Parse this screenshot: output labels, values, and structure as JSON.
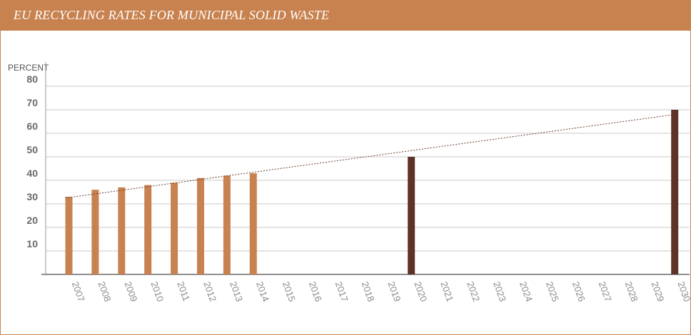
{
  "header": {
    "title": "EU RECYCLING RATES FOR MUNICIPAL SOLID WASTE"
  },
  "colors": {
    "header_bg": "#c8824f",
    "historical_bar": "#c8824f",
    "target_bar": "#5e3226",
    "grid": "#c9c9c9",
    "trend": "#6b3b2c"
  },
  "chart_data": {
    "type": "bar",
    "title": "EU RECYCLING RATES FOR MUNICIPAL SOLID WASTE",
    "ylabel": "PERCENT",
    "xlabel": "",
    "ylim": [
      0,
      80
    ],
    "yticks": [
      10,
      20,
      30,
      40,
      50,
      60,
      70,
      80
    ],
    "grid": true,
    "categories": [
      "2007",
      "2008",
      "2009",
      "2010",
      "2011",
      "2012",
      "2013",
      "2014",
      "2015",
      "2016",
      "2017",
      "2018",
      "2019",
      "2020",
      "2021",
      "2022",
      "2023",
      "2024",
      "2025",
      "2026",
      "2027",
      "2028",
      "2029",
      "2030"
    ],
    "series": [
      {
        "kind": "historical",
        "values": [
          33,
          36,
          37,
          38,
          39,
          41,
          42,
          43,
          null,
          null,
          null,
          null,
          null,
          null,
          null,
          null,
          null,
          null,
          null,
          null,
          null,
          null,
          null,
          null
        ]
      },
      {
        "kind": "target",
        "values": [
          null,
          null,
          null,
          null,
          null,
          null,
          null,
          null,
          null,
          null,
          null,
          null,
          null,
          50,
          null,
          null,
          null,
          null,
          null,
          null,
          null,
          null,
          null,
          70
        ]
      }
    ],
    "trendline": {
      "style": "dotted",
      "from": {
        "x": "2007",
        "y": 32.5
      },
      "to": {
        "x": "2030",
        "y": 68
      }
    }
  }
}
